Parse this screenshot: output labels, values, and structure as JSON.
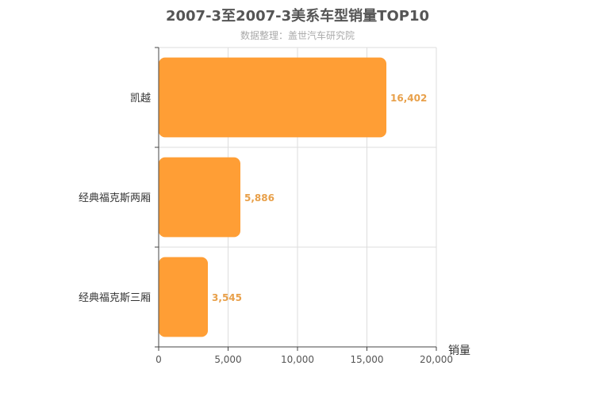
{
  "title": "2007-3至2007-3美系车型销量TOP10",
  "subtitle": "数据整理：盖世汽车研究院",
  "chart_data": {
    "type": "bar",
    "orientation": "horizontal",
    "categories": [
      "凯越",
      "经典福克斯两厢",
      "经典福克斯三厢"
    ],
    "values": [
      16402,
      5886,
      3545
    ],
    "value_labels": [
      "16,402",
      "5,886",
      "3,545"
    ],
    "xlabel": "销量",
    "ylabel": "",
    "xlim": [
      0,
      20000
    ],
    "x_ticks": [
      0,
      5000,
      10000,
      15000,
      20000
    ],
    "x_tick_labels": [
      "0",
      "5,000",
      "10,000",
      "15,000",
      "20,000"
    ],
    "grid": true,
    "legend": "none"
  },
  "colors": {
    "bar": "#ff9e35",
    "value_label": "#e8a04a",
    "grid": "#dddddd",
    "axis": "#444444"
  }
}
